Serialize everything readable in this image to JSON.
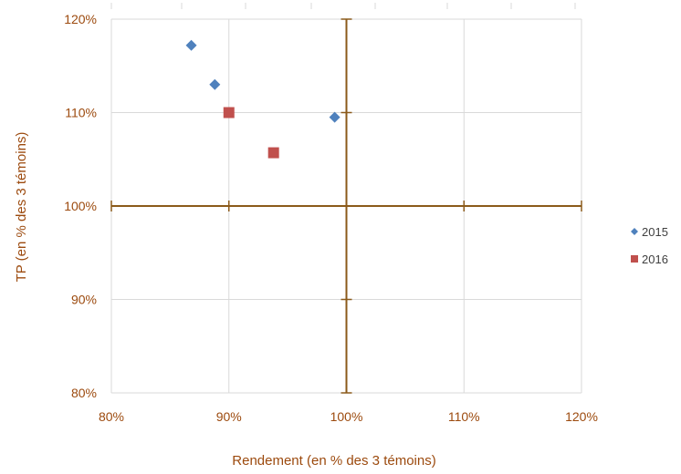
{
  "colors": {
    "axis_text": "#9C4A0E",
    "crosshair": "#8B5A1A",
    "gridline": "#D9D9D9",
    "legend_text": "#404040"
  },
  "chart_data": {
    "type": "scatter",
    "title": "",
    "xlabel": "Rendement (en % des 3 témoins)",
    "ylabel": "TP (en % des 3 témoins)",
    "xlim": [
      80,
      120
    ],
    "ylim": [
      80,
      120
    ],
    "x_ticks": [
      80,
      90,
      100,
      110,
      120
    ],
    "y_ticks": [
      80,
      90,
      100,
      110,
      120
    ],
    "x_tick_labels": [
      "80%",
      "90%",
      "100%",
      "110%",
      "120%"
    ],
    "y_tick_labels": [
      "80%",
      "90%",
      "100%",
      "110%",
      "120%"
    ],
    "grid": true,
    "crosshair_at": [
      100,
      100
    ],
    "legend_position": "right",
    "series": [
      {
        "name": "2015",
        "marker": "diamond",
        "color": "#4F81BD",
        "points": [
          {
            "x": 86.8,
            "y": 117.2
          },
          {
            "x": 88.8,
            "y": 113.0
          },
          {
            "x": 99.0,
            "y": 109.5
          }
        ]
      },
      {
        "name": "2016",
        "marker": "square",
        "color": "#C0504D",
        "points": [
          {
            "x": 90.0,
            "y": 110.0
          },
          {
            "x": 93.8,
            "y": 105.7
          }
        ]
      }
    ]
  }
}
